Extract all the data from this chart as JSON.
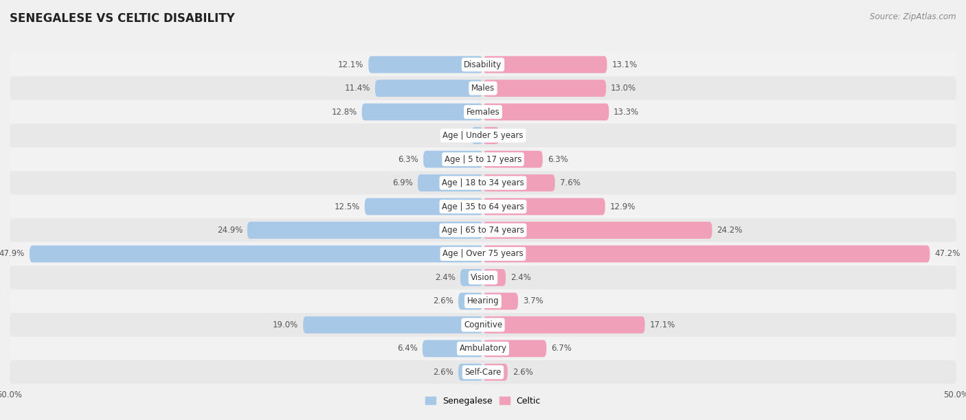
{
  "title": "SENEGALESE VS CELTIC DISABILITY",
  "source": "Source: ZipAtlas.com",
  "categories": [
    "Disability",
    "Males",
    "Females",
    "Age | Under 5 years",
    "Age | 5 to 17 years",
    "Age | 18 to 34 years",
    "Age | 35 to 64 years",
    "Age | 65 to 74 years",
    "Age | Over 75 years",
    "Vision",
    "Hearing",
    "Cognitive",
    "Ambulatory",
    "Self-Care"
  ],
  "senegalese": [
    12.1,
    11.4,
    12.8,
    1.2,
    6.3,
    6.9,
    12.5,
    24.9,
    47.9,
    2.4,
    2.6,
    19.0,
    6.4,
    2.6
  ],
  "celtic": [
    13.1,
    13.0,
    13.3,
    1.7,
    6.3,
    7.6,
    12.9,
    24.2,
    47.2,
    2.4,
    3.7,
    17.1,
    6.7,
    2.6
  ],
  "senegalese_color": "#a8c8e8",
  "celtic_color": "#f0a0b8",
  "row_color_light": "#f2f2f2",
  "row_color_dark": "#e8e8e8",
  "axis_limit": 50.0,
  "bar_height": 0.72,
  "label_fontsize": 8.5,
  "title_fontsize": 12,
  "source_fontsize": 8.5,
  "category_fontsize": 8.5
}
